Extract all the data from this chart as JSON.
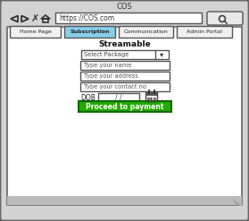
{
  "title": "COS",
  "url": "https://COS.com",
  "bg_color": "#d3d3d3",
  "content_bg": "#ffffff",
  "nav_tabs": [
    "Home Page",
    "Subscription",
    "Communication",
    "Admin Portal"
  ],
  "active_tab": "Subscription",
  "active_tab_color": "#87ceeb",
  "section_title": "Streamable",
  "form_fields": [
    "Select Package",
    "Type your name",
    "Type your address",
    "Type your contact no"
  ],
  "dob_label": "DOB",
  "dob_placeholder": "/ /",
  "button_text": "Proceed to payment",
  "button_color": "#22aa00",
  "button_text_color": "#ffffff",
  "outer_border": "#555555",
  "field_border": "#555555",
  "tab_border": "#555555"
}
